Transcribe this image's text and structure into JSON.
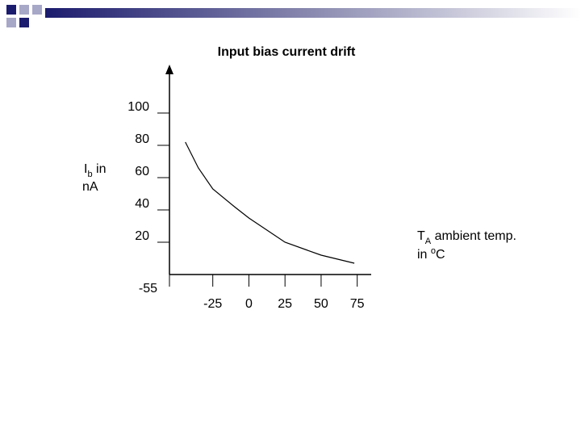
{
  "chart_data": {
    "type": "line",
    "title": "Input bias current drift",
    "y_label": {
      "symbol": "I",
      "subscript": "b",
      "line1_rest": " in",
      "line2": "nA"
    },
    "x_label": {
      "symbol": "T",
      "subscript": "A",
      "line1_rest": " ambient temp.",
      "line2_start": "in ",
      "superscript": "o",
      "line2_end": "C"
    },
    "x": [
      -44,
      -35,
      -25,
      -10,
      0,
      25,
      50,
      73
    ],
    "series": [
      {
        "color": "#000000",
        "values": [
          82,
          66,
          53,
          42,
          35,
          20,
          12,
          7
        ]
      }
    ],
    "xlim": [
      -55,
      83
    ],
    "xticks": [
      -55,
      -25,
      0,
      25,
      50,
      75
    ],
    "ylim": [
      0,
      125
    ],
    "yticks": [
      20,
      40,
      60,
      80,
      100
    ]
  }
}
